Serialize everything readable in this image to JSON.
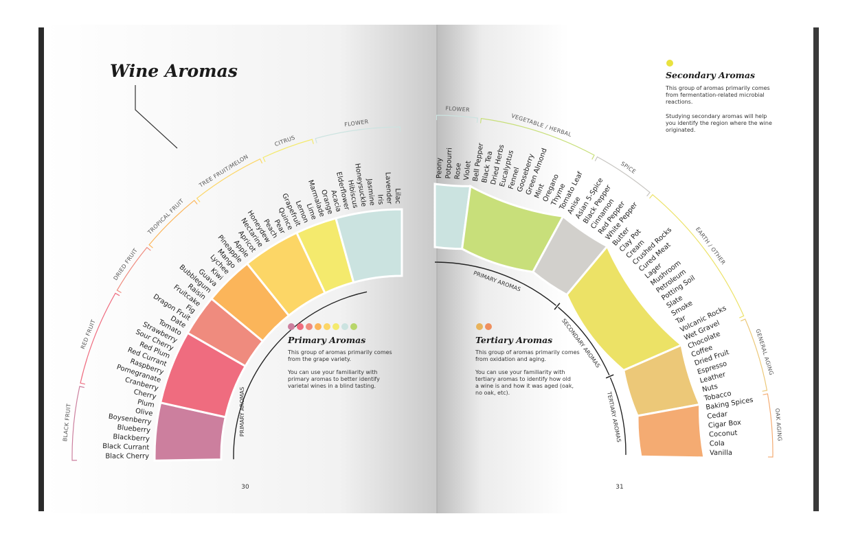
{
  "left": {
    "title": "Wine Aromas",
    "page_number": "30",
    "side_label": "PRIMARY AROMAS",
    "categories": [
      {
        "name": "BLACK FRUIT",
        "color": "#cc7f9e",
        "items": [
          "Black Cherry",
          "Black Currant",
          "Blackberry",
          "Blueberry",
          "Boysenberry",
          "Olive",
          "Plum"
        ]
      },
      {
        "name": "RED FRUIT",
        "color": "#ef6c7f",
        "items": [
          "Cherry",
          "Cranberry",
          "Pomegranate",
          "Raspberry",
          "Red Currant",
          "Red Plum",
          "Sour Cherry",
          "Strawberry",
          "Tomato"
        ]
      },
      {
        "name": "DRIED FRUIT",
        "color": "#ef8b7e",
        "items": [
          "Date",
          "Dragon Fruit",
          "Fig",
          "Fruitcake",
          "Raisin"
        ]
      },
      {
        "name": "TROPICAL FRUIT",
        "color": "#fbb55a",
        "items": [
          "Bubblegum",
          "Guava",
          "Kiwi",
          "Lychee",
          "Mango",
          "Pineapple"
        ]
      },
      {
        "name": "TREE FRUIT/MELON",
        "color": "#fcd666",
        "items": [
          "Apple",
          "Apricot",
          "Nectarine",
          "Honeydew",
          "Peach",
          "Pear",
          "Quince"
        ]
      },
      {
        "name": "CITRUS",
        "color": "#f4ea6d",
        "items": [
          "Grapefruit",
          "Lemon",
          "Lime",
          "Marmalade",
          "Orange"
        ]
      },
      {
        "name": "FLOWER",
        "color": "#cbe3e0",
        "items": [
          "Acacia",
          "Elderflower",
          "Hibiscus",
          "Honeysuckle",
          "Jasmine",
          "Iris",
          "Lavender",
          "Lilac"
        ]
      }
    ],
    "legend": {
      "title": "Primary Aromas",
      "dots": [
        "#cc7f9e",
        "#ef6c7f",
        "#ef8b7e",
        "#fbb55a",
        "#fcd666",
        "#f4ea6d",
        "#cbe3e0",
        "#b8d66a"
      ],
      "para1": "This group of aromas primarily comes from the grape variety.",
      "para2": "You can use your familiarity with primary aromas to better identify varietal wines in a blind tasting."
    }
  },
  "right": {
    "page_number": "31",
    "categories": [
      {
        "name": "FLOWER",
        "color": "#cbe3e0",
        "group": "PRIMARY AROMAS",
        "items": [
          "Peony",
          "Potpourri",
          "Rose",
          "Violet"
        ]
      },
      {
        "name": "VEGETABLE / HERBAL",
        "color": "#c8df7a",
        "group": "PRIMARY AROMAS",
        "items": [
          "Bell Pepper",
          "Black Tea",
          "Dried Herbs",
          "Eucalyptus",
          "Fennel",
          "Gooseberry",
          "Green Almond",
          "Mint",
          "Oregano",
          "Thyme",
          "Tomato Leaf"
        ]
      },
      {
        "name": "SPICE",
        "color": "#d2d0cc",
        "group": "PRIMARY AROMAS",
        "items": [
          "Anise",
          "Asian 5-Spice",
          "Black Pepper",
          "Cinnamon",
          "Red Pepper",
          "White Pepper"
        ]
      },
      {
        "name": "EARTH / OTHER",
        "color": "#ece266",
        "group": "SECONDARY AROMAS",
        "items": [
          "Butter",
          "Clay Pot",
          "Cream",
          "Crushed Rocks",
          "Cured Meat",
          "Lager",
          "Mushroom",
          "Petroleum",
          "Potting Soil",
          "Slate",
          "Smoke",
          "Tar",
          "Volcanic Rocks",
          "Wet Gravel"
        ]
      },
      {
        "name": "GENERAL AGING",
        "color": "#ecc878",
        "group": "TERTIARY AROMAS",
        "items": [
          "Chocolate",
          "Coffee",
          "Dried Fruit",
          "Espresso",
          "Leather",
          "Nuts",
          "Tobacco"
        ]
      },
      {
        "name": "OAK AGING",
        "color": "#f4ab72",
        "group": "TERTIARY AROMAS",
        "items": [
          "Baking Spices",
          "Cedar",
          "Cigar Box",
          "Coconut",
          "Cola",
          "Vanilla"
        ]
      }
    ],
    "groups": [
      "PRIMARY AROMAS",
      "SECONDARY AROMAS",
      "TERTIARY AROMAS"
    ],
    "secondary_note": {
      "title": "Secondary Aromas",
      "dot": "#e9e23f",
      "para1": "This group of aromas primarily comes from fermentation-related microbial reactions.",
      "para2": "Studying secondary aromas will help you identify the region where the wine originated."
    },
    "tertiary_note": {
      "title": "Tertiary Aromas",
      "dots": [
        "#e8b35c",
        "#ef8f5e"
      ],
      "para1": "This group of aromas primarily comes from oxidation and aging.",
      "para2": "You can use your familiarity with tertiary aromas to identify how old a wine is and how it was aged (oak, no oak, etc)."
    }
  }
}
